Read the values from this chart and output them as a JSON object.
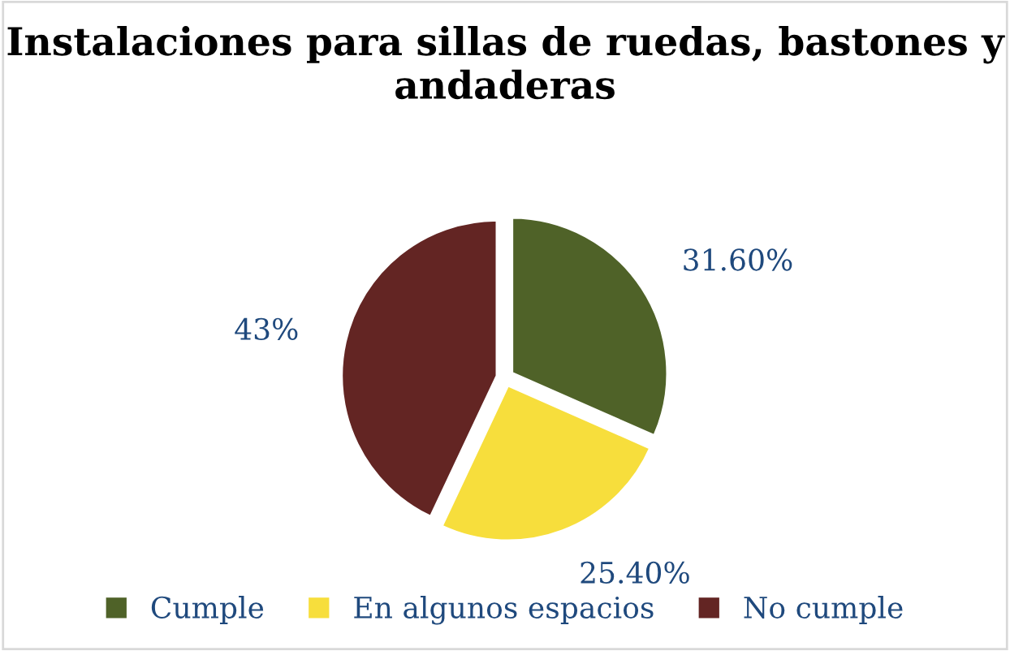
{
  "chart_data": {
    "type": "pie",
    "title": "Instalaciones para sillas de ruedas, bastones y andaderas",
    "categories": [
      "Cumple",
      "En algunos espacios",
      "No cumple"
    ],
    "values": [
      31.6,
      25.4,
      43
    ],
    "value_labels": [
      "31.60%",
      "25.40%",
      "43%"
    ],
    "colors": [
      "#4f6228",
      "#f7de3c",
      "#632523"
    ],
    "legend": "bottom"
  }
}
